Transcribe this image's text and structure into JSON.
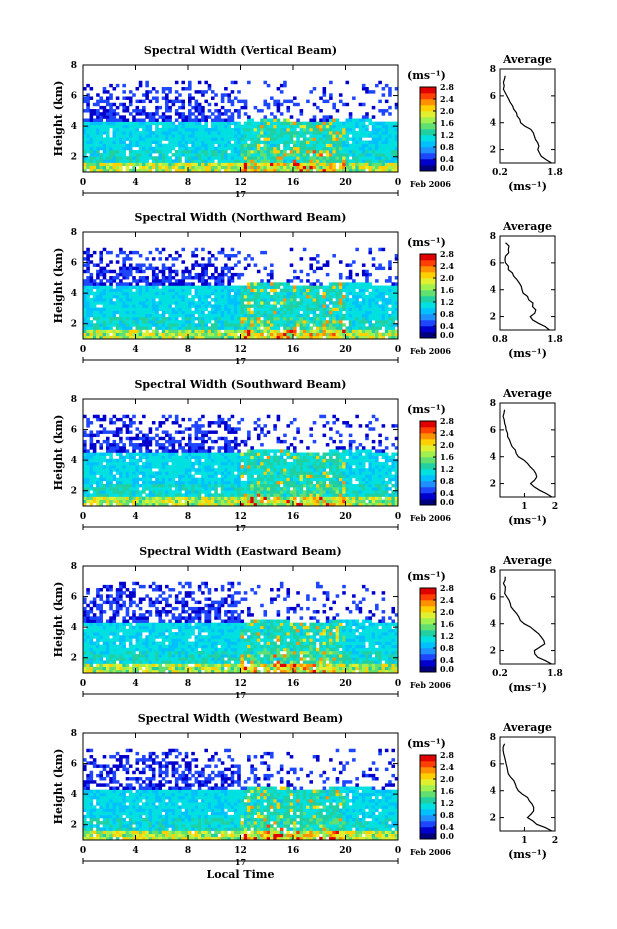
{
  "figure": {
    "xlabel": "Local Time",
    "ylabel": "Height (km)",
    "date_day": "17",
    "date_label": "Feb 2006"
  },
  "colorbar": {
    "unit_label": "(ms⁻¹)",
    "colors": [
      "#000080",
      "#0000cd",
      "#1e46ff",
      "#1e90ff",
      "#00c0ff",
      "#00e0e0",
      "#20d0a0",
      "#60e070",
      "#a0f050",
      "#e0f030",
      "#ffd000",
      "#ff9000",
      "#ff4000",
      "#e00000"
    ]
  },
  "chart_data": [
    {
      "type": "heatmap",
      "title": "Spectral Width (Vertical Beam)",
      "x_ticks": [
        "0",
        "4",
        "8",
        "12",
        "16",
        "20",
        "0"
      ],
      "xlim": [
        0,
        24
      ],
      "y_ticks": [
        "2",
        "4",
        "6",
        "8"
      ],
      "ylim": [
        1,
        8
      ],
      "colorbar_ticks": [
        "0.0",
        "0.4",
        "0.8",
        "1.2",
        "1.6",
        "2.0",
        "2.4",
        "2.8"
      ],
      "colorbar_range": [
        0.0,
        2.8
      ],
      "avg_profile": {
        "title": "Average",
        "xlabel": "(ms⁻¹)",
        "x_ticks": [
          "0.2",
          "1.8"
        ],
        "xlim": [
          0.2,
          1.8
        ],
        "y_ticks": [
          "2",
          "4",
          "6",
          "8"
        ],
        "ylim": [
          1,
          8
        ],
        "height": [
          1.0,
          1.5,
          2.0,
          2.5,
          3.0,
          3.5,
          4.0,
          4.5,
          5.0,
          5.5,
          6.0,
          6.5,
          7.0,
          7.5
        ],
        "width": [
          1.7,
          1.4,
          1.3,
          1.3,
          1.2,
          1.1,
          0.8,
          0.7,
          0.6,
          0.5,
          0.4,
          0.3,
          0.3,
          0.35
        ]
      }
    },
    {
      "type": "heatmap",
      "title": "Spectral Width (Northward Beam)",
      "x_ticks": [
        "0",
        "4",
        "8",
        "12",
        "16",
        "20",
        "0"
      ],
      "xlim": [
        0,
        24
      ],
      "y_ticks": [
        "2",
        "4",
        "6",
        "8"
      ],
      "ylim": [
        1,
        8
      ],
      "colorbar_ticks": [
        "0.0",
        "0.4",
        "0.8",
        "1.2",
        "1.6",
        "2.0",
        "2.4",
        "2.8"
      ],
      "colorbar_range": [
        0.0,
        2.8
      ],
      "avg_profile": {
        "title": "Average",
        "xlabel": "(ms⁻¹)",
        "x_ticks": [
          "0.8",
          "1.8"
        ],
        "xlim": [
          0.8,
          1.8
        ],
        "y_ticks": [
          "2",
          "4",
          "6",
          "8"
        ],
        "ylim": [
          1,
          8
        ],
        "height": [
          1.0,
          1.5,
          2.0,
          2.5,
          3.0,
          3.5,
          4.0,
          4.5,
          5.0,
          5.5,
          6.0,
          6.5,
          7.0,
          7.5
        ],
        "width": [
          1.7,
          1.5,
          1.35,
          1.45,
          1.4,
          1.3,
          1.2,
          1.15,
          1.05,
          0.95,
          0.9,
          0.9,
          0.95,
          0.9
        ]
      }
    },
    {
      "type": "heatmap",
      "title": "Spectral Width (Southward Beam)",
      "x_ticks": [
        "0",
        "4",
        "8",
        "12",
        "16",
        "20",
        "0"
      ],
      "xlim": [
        0,
        24
      ],
      "y_ticks": [
        "2",
        "4",
        "6",
        "8"
      ],
      "ylim": [
        1,
        8
      ],
      "colorbar_ticks": [
        "0.0",
        "0.4",
        "0.8",
        "1.2",
        "1.6",
        "2.0",
        "2.4",
        "2.8"
      ],
      "colorbar_range": [
        0.0,
        2.8
      ],
      "avg_profile": {
        "title": "Average",
        "xlabel": "(ms⁻¹)",
        "x_ticks": [
          "1",
          "2"
        ],
        "xlim": [
          0.2,
          2.0
        ],
        "y_ticks": [
          "2",
          "4",
          "6",
          "8"
        ],
        "ylim": [
          1,
          8
        ],
        "height": [
          1.0,
          1.5,
          2.0,
          2.5,
          3.0,
          3.5,
          4.0,
          4.5,
          5.0,
          5.5,
          6.0,
          6.5,
          7.0,
          7.5
        ],
        "width": [
          1.9,
          1.5,
          1.2,
          1.4,
          1.3,
          1.1,
          0.8,
          0.7,
          0.55,
          0.45,
          0.4,
          0.35,
          0.3,
          0.35
        ]
      }
    },
    {
      "type": "heatmap",
      "title": "Spectral Width (Eastward Beam)",
      "x_ticks": [
        "0",
        "4",
        "8",
        "12",
        "16",
        "20",
        "0"
      ],
      "xlim": [
        0,
        24
      ],
      "y_ticks": [
        "2",
        "4",
        "6",
        "8"
      ],
      "ylim": [
        1,
        8
      ],
      "colorbar_ticks": [
        "0.0",
        "0.4",
        "0.8",
        "1.2",
        "1.6",
        "2.0",
        "2.4",
        "2.8"
      ],
      "colorbar_range": [
        0.0,
        2.8
      ],
      "avg_profile": {
        "title": "Average",
        "xlabel": "(ms⁻¹)",
        "x_ticks": [
          "0.2",
          "1.8"
        ],
        "xlim": [
          0.2,
          1.8
        ],
        "y_ticks": [
          "2",
          "4",
          "6",
          "8"
        ],
        "ylim": [
          1,
          8
        ],
        "height": [
          1.0,
          1.5,
          2.0,
          2.5,
          3.0,
          3.5,
          4.0,
          4.5,
          5.0,
          5.5,
          6.0,
          6.5,
          7.0,
          7.5
        ],
        "width": [
          1.7,
          1.3,
          1.2,
          1.5,
          1.4,
          1.2,
          0.9,
          0.75,
          0.6,
          0.5,
          0.4,
          0.35,
          0.3,
          0.35
        ]
      }
    },
    {
      "type": "heatmap",
      "title": "Spectral Width (Westward Beam)",
      "x_ticks": [
        "0",
        "4",
        "8",
        "12",
        "16",
        "20",
        "0"
      ],
      "xlim": [
        0,
        24
      ],
      "y_ticks": [
        "2",
        "4",
        "6",
        "8"
      ],
      "ylim": [
        1,
        8
      ],
      "colorbar_ticks": [
        "0.0",
        "0.4",
        "0.8",
        "1.2",
        "1.6",
        "2.0",
        "2.4",
        "2.8"
      ],
      "colorbar_range": [
        0.0,
        2.8
      ],
      "avg_profile": {
        "title": "Average",
        "xlabel": "(ms⁻¹)",
        "x_ticks": [
          "1",
          "2"
        ],
        "xlim": [
          0.2,
          2.0
        ],
        "y_ticks": [
          "2",
          "4",
          "6",
          "8"
        ],
        "ylim": [
          1,
          8
        ],
        "height": [
          1.0,
          1.5,
          2.0,
          2.5,
          3.0,
          3.5,
          4.0,
          4.5,
          5.0,
          5.5,
          6.0,
          6.5,
          7.0,
          7.5
        ],
        "width": [
          1.9,
          1.4,
          1.1,
          1.3,
          1.25,
          1.1,
          0.8,
          0.7,
          0.55,
          0.45,
          0.4,
          0.35,
          0.3,
          0.35
        ]
      }
    }
  ]
}
